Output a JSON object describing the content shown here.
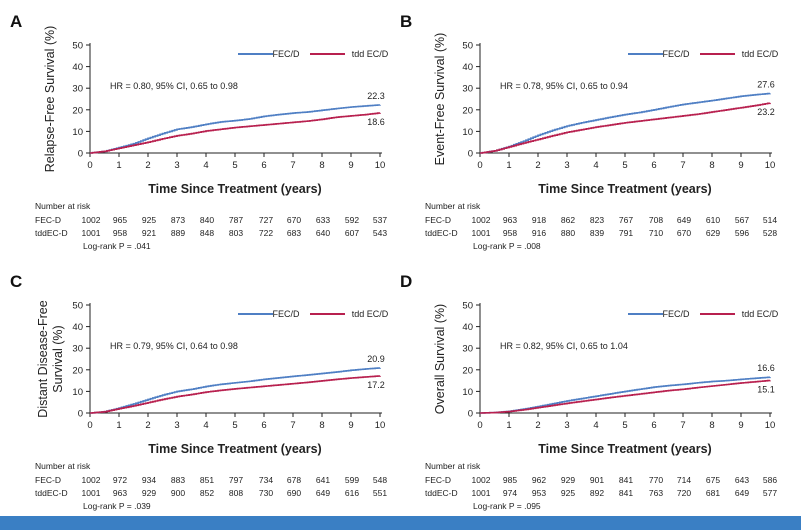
{
  "colors": {
    "fec": "#4f7fc4",
    "tdd": "#b8204f",
    "axis": "#222222",
    "bar": "#3a7fc4"
  },
  "chart_data": [
    {
      "panel": "A",
      "type": "line",
      "ylabel": "Relapse-Free Survival (%)",
      "xlabel": "Time Since Treatment (years)",
      "xlim": [
        0,
        10
      ],
      "ylim": [
        0,
        50
      ],
      "xticks": [
        "0",
        "1",
        "2",
        "3",
        "4",
        "5",
        "6",
        "7",
        "8",
        "9",
        "10"
      ],
      "yticks": [
        "0",
        "10",
        "20",
        "30",
        "40",
        "50"
      ],
      "legend_position": "top-right",
      "hr_text": "HR = 0.80, 95% CI, 0.65 to 0.98",
      "series": [
        {
          "name": "FEC/D",
          "end_label": "22.3",
          "x": [
            0,
            0.5,
            1,
            1.5,
            2,
            2.5,
            3,
            3.5,
            4,
            4.5,
            5,
            5.5,
            6,
            6.5,
            7,
            7.5,
            8,
            8.5,
            9,
            9.5,
            10
          ],
          "y": [
            0,
            0.8,
            2.5,
            4.3,
            6.8,
            9.0,
            11.0,
            12.0,
            13.3,
            14.4,
            15.0,
            15.8,
            17.0,
            17.8,
            18.5,
            19.0,
            19.8,
            20.6,
            21.3,
            21.8,
            22.3
          ]
        },
        {
          "name": "tdd EC/D",
          "end_label": "18.6",
          "x": [
            0,
            0.5,
            1,
            1.5,
            2,
            2.5,
            3,
            3.5,
            4,
            4.5,
            5,
            5.5,
            6,
            6.5,
            7,
            7.5,
            8,
            8.5,
            9,
            9.5,
            10
          ],
          "y": [
            0,
            0.8,
            2.2,
            3.6,
            5.0,
            6.6,
            8.0,
            9.0,
            10.2,
            11.0,
            11.8,
            12.4,
            13.0,
            13.6,
            14.2,
            14.8,
            15.6,
            16.6,
            17.2,
            17.8,
            18.6
          ]
        }
      ],
      "risk_header": "Number at risk",
      "risk_rows": [
        {
          "label": "FEC-D",
          "values": [
            "1002",
            "965",
            "925",
            "873",
            "840",
            "787",
            "727",
            "670",
            "633",
            "592",
            "537"
          ]
        },
        {
          "label": "tddEC-D",
          "values": [
            "1001",
            "958",
            "921",
            "889",
            "848",
            "803",
            "722",
            "683",
            "640",
            "607",
            "543"
          ]
        }
      ],
      "logrank": "Log-rank P = .041"
    },
    {
      "panel": "B",
      "type": "line",
      "ylabel": "Event-Free Survival (%)",
      "xlabel": "Time Since Treatment (years)",
      "xlim": [
        0,
        10
      ],
      "ylim": [
        0,
        50
      ],
      "xticks": [
        "0",
        "1",
        "2",
        "3",
        "4",
        "5",
        "6",
        "7",
        "8",
        "9",
        "10"
      ],
      "yticks": [
        "0",
        "10",
        "20",
        "30",
        "40",
        "50"
      ],
      "legend_position": "top-right",
      "hr_text": "HR = 0.78, 95% CI, 0.65 to 0.94",
      "series": [
        {
          "name": "FEC/D",
          "end_label": "27.6",
          "x": [
            0,
            0.5,
            1,
            1.5,
            2,
            2.5,
            3,
            3.5,
            4,
            4.5,
            5,
            5.5,
            6,
            6.5,
            7,
            7.5,
            8,
            8.5,
            9,
            9.5,
            10
          ],
          "y": [
            0,
            1.0,
            3.0,
            5.5,
            8.2,
            10.5,
            12.5,
            14.0,
            15.3,
            16.6,
            17.8,
            18.8,
            20.0,
            21.3,
            22.5,
            23.4,
            24.3,
            25.3,
            26.3,
            27.0,
            27.6
          ]
        },
        {
          "name": "tdd EC/D",
          "end_label": "23.2",
          "x": [
            0,
            0.5,
            1,
            1.5,
            2,
            2.5,
            3,
            3.5,
            4,
            4.5,
            5,
            5.5,
            6,
            6.5,
            7,
            7.5,
            8,
            8.5,
            9,
            9.5,
            10
          ],
          "y": [
            0,
            1.0,
            2.8,
            4.6,
            6.3,
            8.0,
            9.6,
            10.8,
            12.0,
            13.0,
            14.0,
            14.8,
            15.6,
            16.4,
            17.2,
            18.0,
            19.0,
            20.0,
            21.0,
            22.0,
            23.2
          ]
        }
      ],
      "risk_header": "Number at risk",
      "risk_rows": [
        {
          "label": "FEC-D",
          "values": [
            "1002",
            "963",
            "918",
            "862",
            "823",
            "767",
            "708",
            "649",
            "610",
            "567",
            "514"
          ]
        },
        {
          "label": "tddEC-D",
          "values": [
            "1001",
            "958",
            "916",
            "880",
            "839",
            "791",
            "710",
            "670",
            "629",
            "596",
            "528"
          ]
        }
      ],
      "logrank": "Log-rank P = .008"
    },
    {
      "panel": "C",
      "type": "line",
      "ylabel": "Distant Disease-Free Survival (%)",
      "xlabel": "Time Since Treatment (years)",
      "xlim": [
        0,
        10
      ],
      "ylim": [
        0,
        50
      ],
      "xticks": [
        "0",
        "1",
        "2",
        "3",
        "4",
        "5",
        "6",
        "7",
        "8",
        "9",
        "10"
      ],
      "yticks": [
        "0",
        "10",
        "20",
        "30",
        "40",
        "50"
      ],
      "legend_position": "top-right",
      "hr_text": "HR = 0.79, 95% CI, 0.64 to 0.98",
      "series": [
        {
          "name": "FEC/D",
          "end_label": "20.9",
          "x": [
            0,
            0.5,
            1,
            1.5,
            2,
            2.5,
            3,
            3.5,
            4,
            4.5,
            5,
            5.5,
            6,
            6.5,
            7,
            7.5,
            8,
            8.5,
            9,
            9.5,
            10
          ],
          "y": [
            0,
            0.6,
            2.3,
            4.2,
            6.3,
            8.3,
            10.0,
            11.0,
            12.3,
            13.3,
            14.0,
            14.7,
            15.6,
            16.3,
            17.0,
            17.6,
            18.3,
            19.0,
            19.8,
            20.4,
            20.9
          ]
        },
        {
          "name": "tdd EC/D",
          "end_label": "17.2",
          "x": [
            0,
            0.5,
            1,
            1.5,
            2,
            2.5,
            3,
            3.5,
            4,
            4.5,
            5,
            5.5,
            6,
            6.5,
            7,
            7.5,
            8,
            8.5,
            9,
            9.5,
            10
          ],
          "y": [
            0,
            0.6,
            2.0,
            3.3,
            4.8,
            6.3,
            7.6,
            8.6,
            9.7,
            10.5,
            11.2,
            11.8,
            12.4,
            13.0,
            13.6,
            14.2,
            14.9,
            15.6,
            16.2,
            16.7,
            17.2
          ]
        }
      ],
      "risk_header": "Number at risk",
      "risk_rows": [
        {
          "label": "FEC-D",
          "values": [
            "1002",
            "972",
            "934",
            "883",
            "851",
            "797",
            "734",
            "678",
            "641",
            "599",
            "548"
          ]
        },
        {
          "label": "tddEC-D",
          "values": [
            "1001",
            "963",
            "929",
            "900",
            "852",
            "808",
            "730",
            "690",
            "649",
            "616",
            "551"
          ]
        }
      ],
      "logrank": "Log-rank P = .039"
    },
    {
      "panel": "D",
      "type": "line",
      "ylabel": "Overall Survival (%)",
      "xlabel": "Time Since Treatment (years)",
      "xlim": [
        0,
        10
      ],
      "ylim": [
        0,
        50
      ],
      "xticks": [
        "0",
        "1",
        "2",
        "3",
        "4",
        "5",
        "6",
        "7",
        "8",
        "9",
        "10"
      ],
      "yticks": [
        "0",
        "10",
        "20",
        "30",
        "40",
        "50"
      ],
      "legend_position": "top-right",
      "hr_text": "HR = 0.82, 95% CI, 0.65 to 1.04",
      "series": [
        {
          "name": "FEC/D",
          "end_label": "16.6",
          "x": [
            0,
            0.5,
            1,
            1.5,
            2,
            2.5,
            3,
            3.5,
            4,
            4.5,
            5,
            5.5,
            6,
            6.5,
            7,
            7.5,
            8,
            8.5,
            9,
            9.5,
            10
          ],
          "y": [
            0,
            0.2,
            0.8,
            1.8,
            3.0,
            4.3,
            5.6,
            6.7,
            7.8,
            8.9,
            10.0,
            11.0,
            12.0,
            12.7,
            13.3,
            14.0,
            14.6,
            15.0,
            15.6,
            16.1,
            16.6
          ]
        },
        {
          "name": "tdd EC/D",
          "end_label": "15.1",
          "x": [
            0,
            0.5,
            1,
            1.5,
            2,
            2.5,
            3,
            3.5,
            4,
            4.5,
            5,
            5.5,
            6,
            6.5,
            7,
            7.5,
            8,
            8.5,
            9,
            9.5,
            10
          ],
          "y": [
            0,
            0.2,
            0.7,
            1.5,
            2.5,
            3.5,
            4.5,
            5.4,
            6.3,
            7.2,
            8.0,
            8.8,
            9.6,
            10.4,
            11.0,
            11.8,
            12.5,
            13.2,
            13.9,
            14.5,
            15.1
          ]
        }
      ],
      "risk_header": "Number at risk",
      "risk_rows": [
        {
          "label": "FEC-D",
          "values": [
            "1002",
            "985",
            "962",
            "929",
            "901",
            "841",
            "770",
            "714",
            "675",
            "643",
            "586"
          ]
        },
        {
          "label": "tddEC-D",
          "values": [
            "1001",
            "974",
            "953",
            "925",
            "892",
            "841",
            "763",
            "720",
            "681",
            "649",
            "577"
          ]
        }
      ],
      "logrank": "Log-rank P = .095"
    }
  ]
}
